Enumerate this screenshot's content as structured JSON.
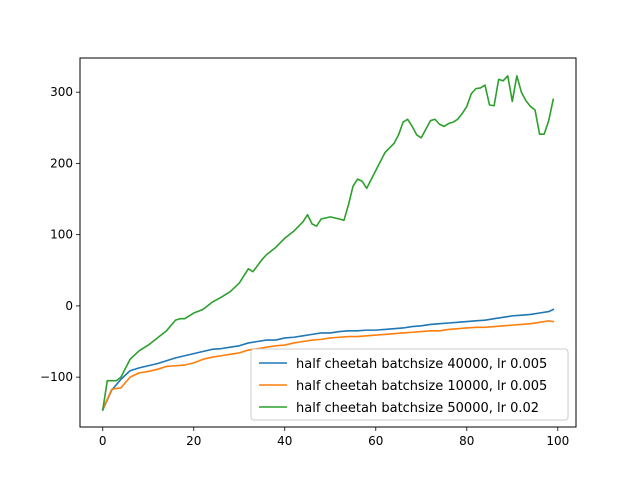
{
  "chart_data": {
    "type": "line",
    "title": "",
    "xlabel": "",
    "ylabel": "",
    "xlim": [
      -5,
      104
    ],
    "ylim": [
      -170,
      348
    ],
    "xticks": [
      0,
      20,
      40,
      60,
      80,
      100
    ],
    "yticks": [
      -100,
      0,
      100,
      200,
      300
    ],
    "grid": false,
    "legend_position": "lower-right",
    "series": [
      {
        "name": "half cheetah batchsize 40000, lr 0.005",
        "color": "#1f77b4",
        "x": [
          0,
          2,
          4,
          6,
          8,
          10,
          12,
          14,
          16,
          18,
          20,
          22,
          24,
          26,
          28,
          30,
          32,
          34,
          36,
          38,
          40,
          42,
          44,
          46,
          48,
          50,
          52,
          54,
          56,
          58,
          60,
          62,
          64,
          66,
          68,
          70,
          72,
          74,
          76,
          78,
          80,
          82,
          84,
          86,
          88,
          90,
          92,
          94,
          96,
          98,
          99
        ],
        "values": [
          -146,
          -118,
          -103,
          -91,
          -87,
          -84,
          -81,
          -77,
          -73,
          -70,
          -67,
          -64,
          -61,
          -60,
          -58,
          -56,
          -52,
          -50,
          -48,
          -48,
          -45,
          -44,
          -42,
          -40,
          -38,
          -38,
          -36,
          -35,
          -35,
          -34,
          -34,
          -33,
          -32,
          -31,
          -29,
          -28,
          -26,
          -25,
          -24,
          -23,
          -22,
          -21,
          -20,
          -18,
          -16,
          -14,
          -13,
          -12,
          -10,
          -8,
          -5
        ]
      },
      {
        "name": "half cheetah batchsize 10000, lr 0.005",
        "color": "#ff7f0e",
        "x": [
          0,
          2,
          4,
          6,
          8,
          10,
          12,
          14,
          16,
          18,
          20,
          22,
          24,
          26,
          28,
          30,
          32,
          34,
          36,
          38,
          40,
          42,
          44,
          46,
          48,
          50,
          52,
          54,
          56,
          58,
          60,
          62,
          64,
          66,
          68,
          70,
          72,
          74,
          76,
          78,
          80,
          82,
          84,
          86,
          88,
          90,
          92,
          94,
          96,
          98,
          99
        ],
        "values": [
          -145,
          -117,
          -115,
          -100,
          -94,
          -92,
          -89,
          -85,
          -84,
          -83,
          -80,
          -75,
          -72,
          -70,
          -68,
          -66,
          -62,
          -60,
          -58,
          -56,
          -55,
          -52,
          -50,
          -48,
          -47,
          -45,
          -44,
          -43,
          -43,
          -42,
          -41,
          -40,
          -39,
          -38,
          -37,
          -36,
          -35,
          -35,
          -33,
          -32,
          -31,
          -30,
          -30,
          -29,
          -28,
          -27,
          -26,
          -25,
          -23,
          -21,
          -22
        ]
      },
      {
        "name": "half cheetah batchsize 50000, lr 0.02",
        "color": "#2ca02c",
        "x": [
          0,
          1,
          3,
          4,
          6,
          8,
          10,
          12,
          14,
          16,
          17,
          18,
          20,
          22,
          24,
          26,
          28,
          30,
          32,
          33,
          35,
          36,
          38,
          40,
          42,
          44,
          45,
          46,
          47,
          48,
          50,
          52,
          53,
          54,
          55,
          56,
          57,
          58,
          60,
          62,
          64,
          65,
          66,
          67,
          68,
          69,
          70,
          71,
          72,
          73,
          74,
          75,
          76,
          77,
          78,
          79,
          80,
          81,
          82,
          83,
          84,
          85,
          86,
          87,
          88,
          89,
          90,
          91,
          92,
          93,
          94,
          95,
          96,
          97,
          98,
          99
        ],
        "values": [
          -146,
          -105,
          -105,
          -100,
          -75,
          -63,
          -55,
          -45,
          -35,
          -20,
          -18,
          -18,
          -10,
          -5,
          5,
          12,
          20,
          32,
          52,
          48,
          65,
          72,
          82,
          95,
          105,
          118,
          128,
          115,
          112,
          122,
          125,
          122,
          120,
          142,
          168,
          178,
          175,
          165,
          190,
          215,
          228,
          240,
          258,
          262,
          252,
          240,
          236,
          248,
          260,
          262,
          255,
          252,
          256,
          258,
          262,
          270,
          280,
          298,
          305,
          306,
          310,
          282,
          281,
          318,
          316,
          323,
          287,
          323,
          300,
          288,
          280,
          275,
          241,
          241,
          260,
          290
        ]
      }
    ]
  }
}
